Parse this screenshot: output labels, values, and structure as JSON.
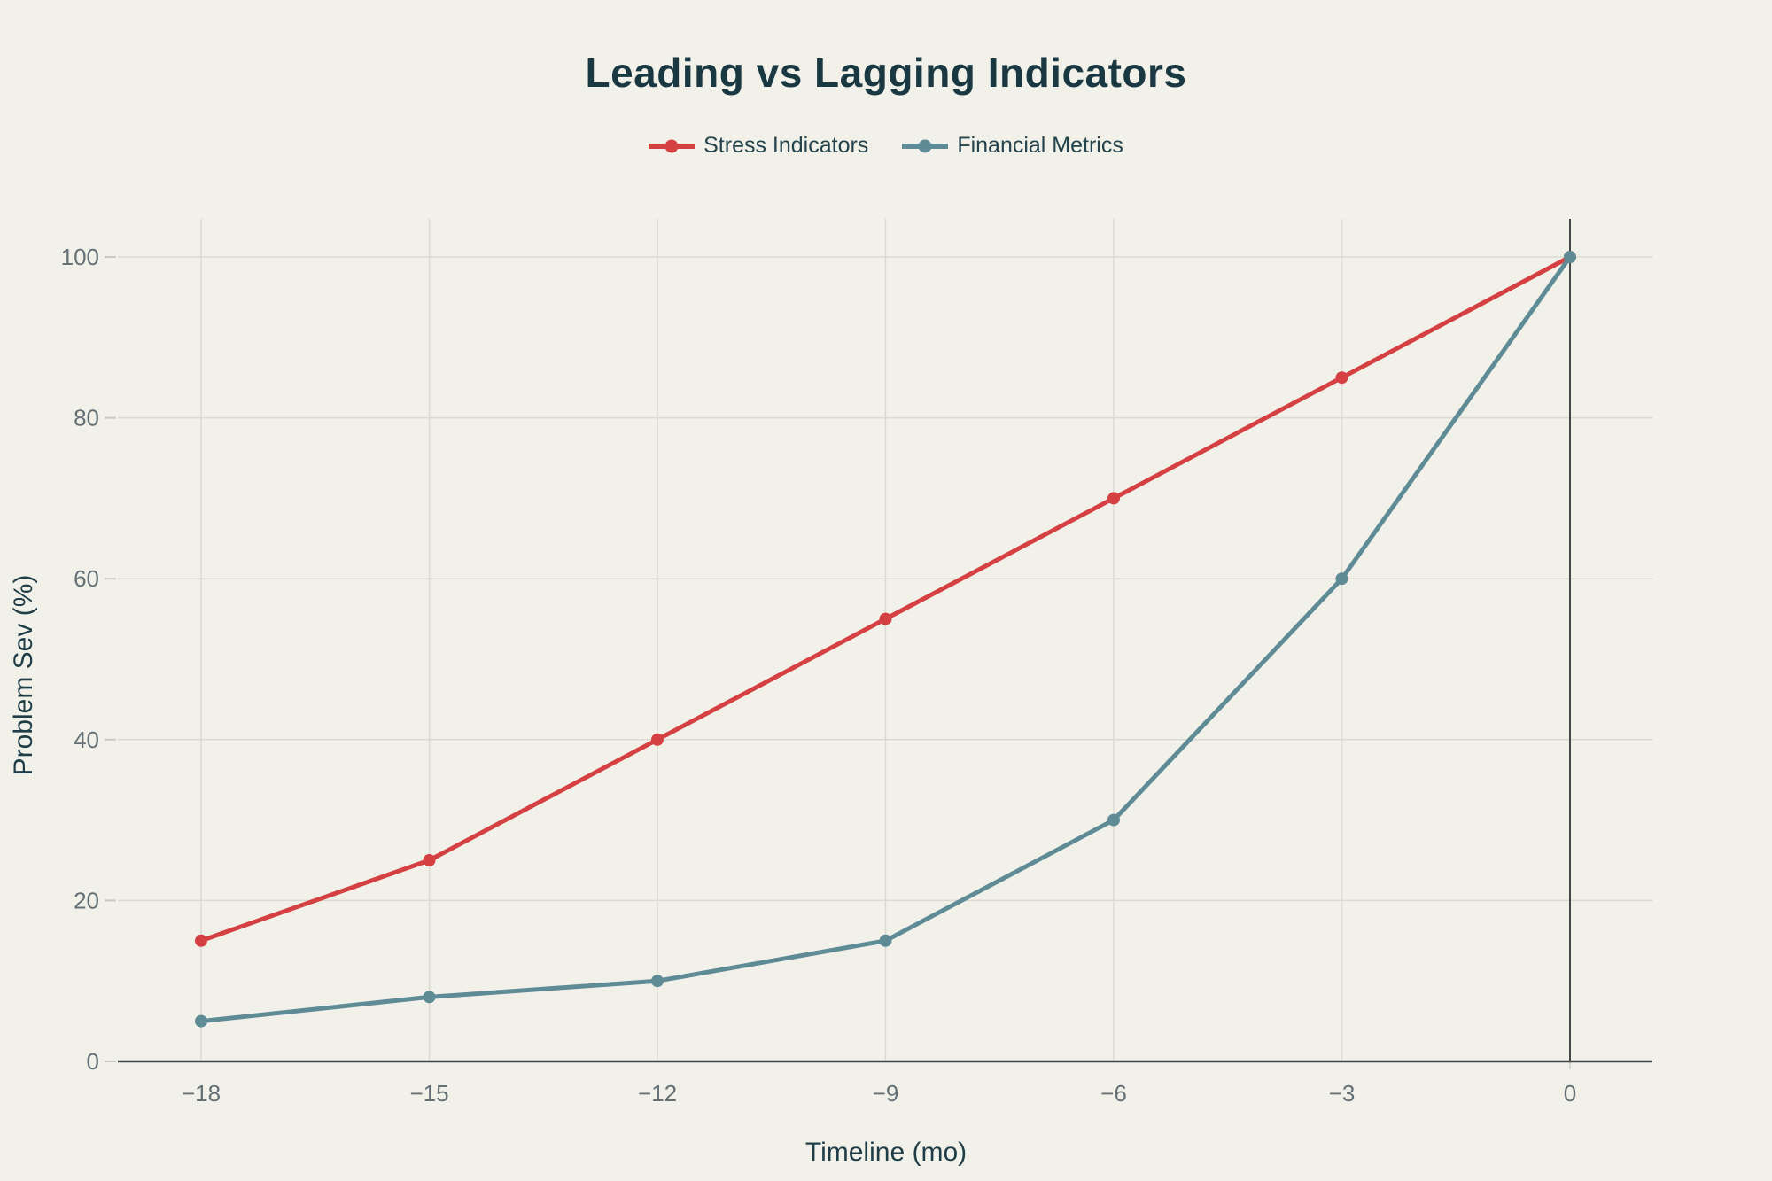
{
  "chart_data": {
    "type": "line",
    "title": "Leading vs Lagging Indicators",
    "xlabel": "Timeline (mo)",
    "ylabel": "Problem Sev (%)",
    "x": [
      -18,
      -15,
      -12,
      -9,
      -6,
      -3,
      0
    ],
    "x_tick_labels": [
      "−18",
      "−15",
      "−12",
      "−9",
      "−6",
      "−3",
      "0"
    ],
    "y_ticks": [
      0,
      20,
      40,
      60,
      80,
      100
    ],
    "y_tick_labels": [
      "0",
      "20",
      "40",
      "60",
      "80",
      "100"
    ],
    "xlim": [
      -19.1,
      1.1
    ],
    "ylim": [
      0,
      104.7
    ],
    "grid": true,
    "legend_position": "top-center",
    "zero_reference_line_x": 0,
    "series": [
      {
        "name": "Stress Indicators",
        "color": "#d54042",
        "values": [
          15,
          25,
          40,
          55,
          70,
          85,
          100
        ]
      },
      {
        "name": "Financial Metrics",
        "color": "#5e8b96",
        "values": [
          5,
          8,
          10,
          15,
          30,
          60,
          100
        ]
      }
    ]
  },
  "colors": {
    "background": "#f1f1e9",
    "gridline": "#dadad2",
    "axis_line": "#444848",
    "tick_label": "#647076",
    "title": "#1a3842"
  }
}
